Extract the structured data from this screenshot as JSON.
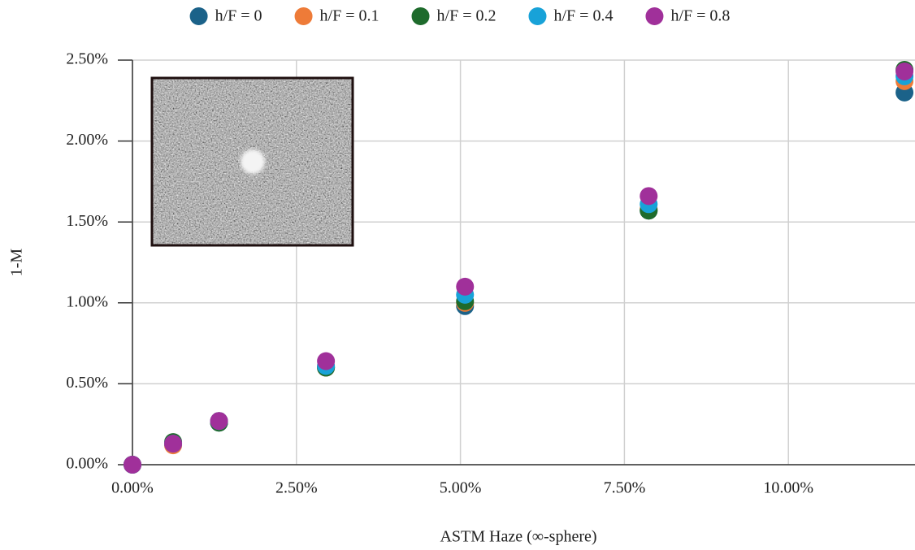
{
  "chart_data": {
    "type": "scatter",
    "x_label": "ASTM Haze (∞-sphere)",
    "y_label": "1-M",
    "x": [
      0,
      0.62,
      1.32,
      2.95,
      5.07,
      7.87,
      11.77
    ],
    "series": [
      {
        "name": "h/F = 0",
        "color": "#1b6289",
        "values": [
          0,
          0.13,
          0.26,
          0.6,
          0.98,
          1.57,
          2.3
        ]
      },
      {
        "name": "h/F = 0.1",
        "color": "#ee7b38",
        "values": [
          0,
          0.12,
          0.27,
          0.6,
          1.0,
          1.58,
          2.37
        ]
      },
      {
        "name": "h/F = 0.2",
        "color": "#1e6b2c",
        "values": [
          0,
          0.14,
          0.26,
          0.6,
          1.01,
          1.57,
          2.44
        ]
      },
      {
        "name": "h/F = 0.4",
        "color": "#18a2d8",
        "values": [
          0,
          0.13,
          0.27,
          0.61,
          1.05,
          1.61,
          2.4
        ]
      },
      {
        "name": "h/F = 0.8",
        "color": "#a0309a",
        "values": [
          0,
          0.13,
          0.27,
          0.64,
          1.1,
          1.66,
          2.43
        ]
      }
    ],
    "xlim": [
      0,
      11.93
    ],
    "ylim": [
      0,
      2.5
    ],
    "xticks": [
      {
        "value": 0,
        "label": "0.00%"
      },
      {
        "value": 2.5,
        "label": "2.50%"
      },
      {
        "value": 5,
        "label": "5.00%"
      },
      {
        "value": 7.5,
        "label": "7.50%"
      },
      {
        "value": 10,
        "label": "10.00%"
      }
    ],
    "yticks": [
      {
        "value": 0,
        "label": "0.00%"
      },
      {
        "value": 0.5,
        "label": "0.50%"
      },
      {
        "value": 1,
        "label": "1.00%"
      },
      {
        "value": 1.5,
        "label": "1.50%"
      },
      {
        "value": 2,
        "label": "2.00%"
      },
      {
        "value": 2.5,
        "label": "2.50%"
      }
    ],
    "grid": true,
    "legend": "top"
  }
}
